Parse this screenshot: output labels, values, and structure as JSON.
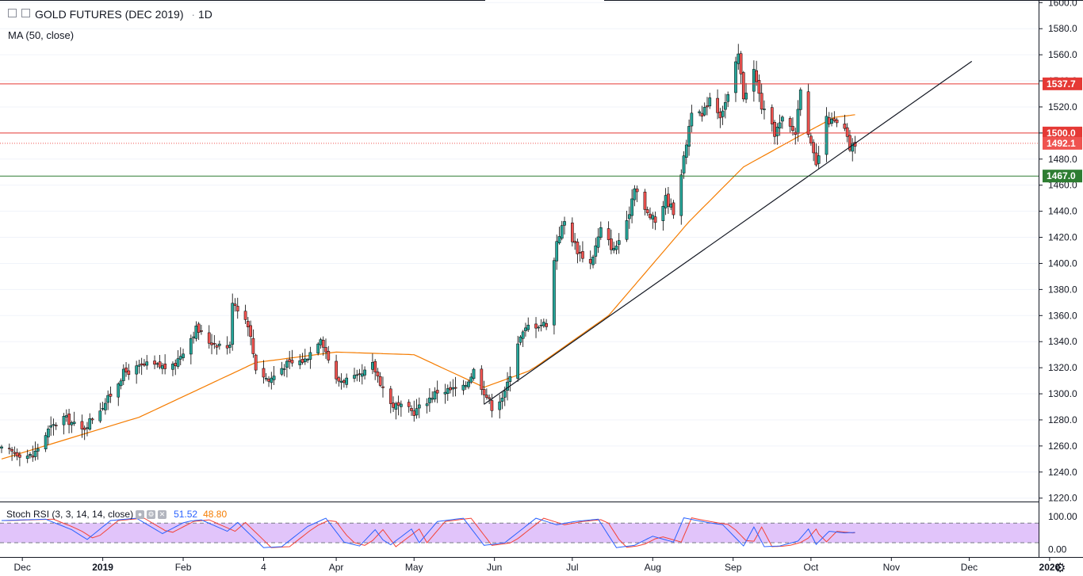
{
  "header": {
    "symbol_title": "GOLD FUTURES (DEC 2019)",
    "separator": "·",
    "interval": "1D",
    "indicator_ma": "MA (50, close)"
  },
  "oscillator": {
    "title": "Stoch RSI (3, 3, 14, 14, close)",
    "k_value": "51.52",
    "d_value": "48.80",
    "axis_labels": [
      "100.00",
      "0.00"
    ]
  },
  "colors": {
    "up": "#26a69a",
    "down": "#ef5350",
    "ma": "#f57c00",
    "resistance": "#e53935",
    "support": "#2e7d32",
    "trendline": "#131722",
    "stoch_k": "#2962ff",
    "stoch_d": "#f44336",
    "stoch_band": "#e1c4fa"
  },
  "chart_data": {
    "type": "candlestick",
    "x_axis_labels": [
      "Dec",
      "2019",
      "Feb",
      "4",
      "Apr",
      "May",
      "Jun",
      "Jul",
      "Aug",
      "Sep",
      "Oct",
      "Nov",
      "Dec",
      "2020"
    ],
    "y_axis_labels": [
      "1600.0",
      "1580.0",
      "1560.0",
      "1540.0",
      "1520.0",
      "1500.0",
      "1480.0",
      "1460.0",
      "1440.0",
      "1420.0",
      "1400.0",
      "1380.0",
      "1360.0",
      "1340.0",
      "1320.0",
      "1300.0",
      "1280.0",
      "1260.0",
      "1240.0",
      "1220.0"
    ],
    "ylim": [
      1218,
      1602
    ],
    "price_levels": [
      {
        "label": "1537.7",
        "value": 1537.7,
        "kind": "resistance"
      },
      {
        "label": "1500.0",
        "value": 1500.0,
        "kind": "resistance"
      },
      {
        "label": "1492.1",
        "value": 1492.1,
        "kind": "last"
      },
      {
        "label": "1467.0",
        "value": 1467.0,
        "kind": "support"
      }
    ],
    "trendline": {
      "from": {
        "date": "2019-05-28",
        "price": 1292
      },
      "to": {
        "date": "2019-12-02",
        "price": 1555
      }
    },
    "close_anchors": [
      [
        "2018-11-23",
        1257
      ],
      [
        "2018-12-05",
        1252
      ],
      [
        "2018-12-11",
        1272
      ],
      [
        "2018-12-17",
        1282
      ],
      [
        "2018-12-24",
        1272
      ],
      [
        "2019-01-03",
        1296
      ],
      [
        "2019-01-09",
        1316
      ],
      [
        "2019-01-18",
        1322
      ],
      [
        "2019-01-28",
        1320
      ],
      [
        "2019-02-06",
        1350
      ],
      [
        "2019-02-11",
        1340
      ],
      [
        "2019-02-19",
        1336
      ],
      [
        "2019-02-20",
        1372
      ],
      [
        "2019-02-26",
        1354
      ],
      [
        "2019-03-01",
        1320
      ],
      [
        "2019-03-06",
        1310
      ],
      [
        "2019-03-12",
        1322
      ],
      [
        "2019-03-20",
        1326
      ],
      [
        "2019-03-26",
        1344
      ],
      [
        "2019-04-01",
        1310
      ],
      [
        "2019-04-10",
        1312
      ],
      [
        "2019-04-15",
        1322
      ],
      [
        "2019-04-22",
        1292
      ],
      [
        "2019-05-01",
        1286
      ],
      [
        "2019-05-10",
        1302
      ],
      [
        "2019-05-20",
        1304
      ],
      [
        "2019-05-24",
        1318
      ],
      [
        "2019-05-31",
        1290
      ],
      [
        "2019-06-05",
        1300
      ],
      [
        "2019-06-10",
        1340
      ],
      [
        "2019-06-14",
        1352
      ],
      [
        "2019-06-21",
        1354
      ],
      [
        "2019-06-25",
        1418
      ],
      [
        "2019-06-28",
        1432
      ],
      [
        "2019-07-03",
        1410
      ],
      [
        "2019-07-08",
        1400
      ],
      [
        "2019-07-12",
        1426
      ],
      [
        "2019-07-17",
        1410
      ],
      [
        "2019-07-22",
        1430
      ],
      [
        "2019-07-25",
        1460
      ],
      [
        "2019-07-29",
        1440
      ],
      [
        "2019-08-02",
        1432
      ],
      [
        "2019-08-06",
        1450
      ],
      [
        "2019-08-09",
        1440
      ],
      [
        "2019-08-13",
        1480
      ],
      [
        "2019-08-16",
        1518
      ],
      [
        "2019-08-20",
        1512
      ],
      [
        "2019-08-23",
        1528
      ],
      [
        "2019-08-27",
        1514
      ],
      [
        "2019-08-30",
        1528
      ],
      [
        "2019-09-03",
        1560
      ],
      [
        "2019-09-05",
        1528
      ],
      [
        "2019-09-09",
        1548
      ],
      [
        "2019-09-12",
        1520
      ],
      [
        "2019-09-17",
        1500
      ],
      [
        "2019-09-20",
        1510
      ],
      [
        "2019-09-25",
        1500
      ],
      [
        "2019-09-27",
        1536
      ],
      [
        "2019-10-01",
        1490
      ],
      [
        "2019-10-03",
        1474
      ],
      [
        "2019-10-07",
        1510
      ],
      [
        "2019-10-10",
        1508
      ],
      [
        "2019-10-14",
        1502
      ],
      [
        "2019-10-16",
        1488
      ],
      [
        "2019-10-18",
        1492.1
      ]
    ],
    "ma_anchors": [
      [
        "2018-11-23",
        1250
      ],
      [
        "2019-01-15",
        1282
      ],
      [
        "2019-03-01",
        1324
      ],
      [
        "2019-04-01",
        1332
      ],
      [
        "2019-05-01",
        1330
      ],
      [
        "2019-05-28",
        1305
      ],
      [
        "2019-06-15",
        1318
      ],
      [
        "2019-07-15",
        1360
      ],
      [
        "2019-08-15",
        1432
      ],
      [
        "2019-09-05",
        1474
      ],
      [
        "2019-09-25",
        1496
      ],
      [
        "2019-10-10",
        1512
      ],
      [
        "2019-10-18",
        1514
      ]
    ],
    "stoch_rsi_anchors": [
      [
        "2018-11-23",
        88
      ],
      [
        "2018-12-10",
        92
      ],
      [
        "2018-12-20",
        60
      ],
      [
        "2018-12-26",
        30
      ],
      [
        "2019-01-04",
        88
      ],
      [
        "2019-01-14",
        95
      ],
      [
        "2019-01-24",
        48
      ],
      [
        "2019-02-02",
        85
      ],
      [
        "2019-02-08",
        90
      ],
      [
        "2019-02-18",
        55
      ],
      [
        "2019-02-22",
        82
      ],
      [
        "2019-03-04",
        5
      ],
      [
        "2019-03-11",
        8
      ],
      [
        "2019-03-21",
        70
      ],
      [
        "2019-03-28",
        95
      ],
      [
        "2019-04-04",
        22
      ],
      [
        "2019-04-10",
        10
      ],
      [
        "2019-04-16",
        60
      ],
      [
        "2019-04-21",
        8
      ],
      [
        "2019-04-30",
        62
      ],
      [
        "2019-05-03",
        20
      ],
      [
        "2019-05-10",
        85
      ],
      [
        "2019-05-20",
        95
      ],
      [
        "2019-05-28",
        12
      ],
      [
        "2019-06-05",
        20
      ],
      [
        "2019-06-17",
        95
      ],
      [
        "2019-06-25",
        75
      ],
      [
        "2019-07-02",
        85
      ],
      [
        "2019-07-11",
        92
      ],
      [
        "2019-07-18",
        5
      ],
      [
        "2019-07-25",
        12
      ],
      [
        "2019-08-01",
        40
      ],
      [
        "2019-08-09",
        22
      ],
      [
        "2019-08-13",
        96
      ],
      [
        "2019-08-22",
        82
      ],
      [
        "2019-08-28",
        75
      ],
      [
        "2019-09-05",
        10
      ],
      [
        "2019-09-09",
        68
      ],
      [
        "2019-09-13",
        8
      ],
      [
        "2019-09-19",
        10
      ],
      [
        "2019-09-26",
        25
      ],
      [
        "2019-09-30",
        62
      ],
      [
        "2019-10-03",
        15
      ],
      [
        "2019-10-08",
        55
      ],
      [
        "2019-10-14",
        50
      ],
      [
        "2019-10-18",
        51.52
      ]
    ]
  }
}
